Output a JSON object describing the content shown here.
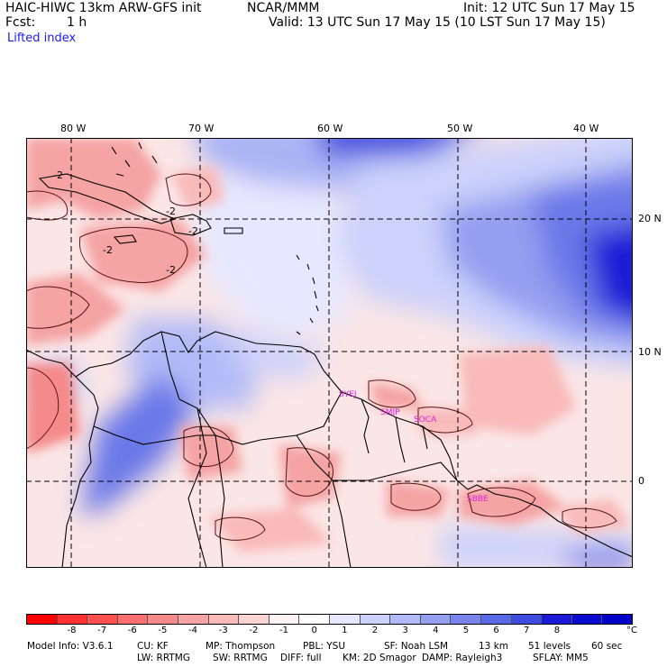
{
  "header": {
    "model": "HAIC-HIWC 13km ARW-GFS init",
    "org": "NCAR/MMM",
    "init": "Init: 12 UTC Sun 17 May 15",
    "fcst_label": "Fcst:",
    "fcst_value": "1 h",
    "valid": "Valid: 13 UTC Sun 17 May 15 (10 LST Sun 17 May 15)",
    "field": "Lifted index"
  },
  "map": {
    "lon_labels": [
      "80 W",
      "70 W",
      "60 W",
      "50 W",
      "40 W"
    ],
    "lat_labels": [
      "20 N",
      "10 N",
      "0"
    ],
    "contour_labels": [
      "-2",
      "-2",
      "-2",
      "-2",
      "-2"
    ],
    "stations": [
      "SYEJ",
      "SMJP",
      "SOCA",
      "SBBE"
    ],
    "colors": {
      "station": "#e020e0",
      "grid": "#000000",
      "coast": "#000000"
    }
  },
  "colorbar": {
    "labels": [
      "-8",
      "-7",
      "-6",
      "-5",
      "-4",
      "-3",
      "-2",
      "-1",
      "0",
      "1",
      "2",
      "3",
      "4",
      "5",
      "6",
      "7",
      "8"
    ],
    "unit": "°C",
    "colors": [
      "#ff0000",
      "#ff3030",
      "#ff5050",
      "#ff6e6e",
      "#f58a8a",
      "#f5a3a3",
      "#f9baba",
      "#fdd4d4",
      "#fff2f2",
      "#ffffff",
      "#e6e8ff",
      "#ccd2fb",
      "#b2bbf7",
      "#949ff0",
      "#7884ec",
      "#5a69e6",
      "#3c4cdf",
      "#1a1ad6",
      "#0a0ad0",
      "#0000c8"
    ]
  },
  "footer": {
    "line1": [
      "Model Info: V3.6.1",
      "CU: KF",
      "MP: Thompson",
      "PBL: YSU",
      "SF: Noah LSM",
      "13 km",
      "51 levels",
      "60 sec"
    ],
    "line2": [
      "LW: RRTMG",
      "SW: RRTMG",
      "DIFF: full",
      "KM: 2D Smagor",
      "DAMP: Rayleigh3",
      "SFLAY: MM5"
    ]
  }
}
